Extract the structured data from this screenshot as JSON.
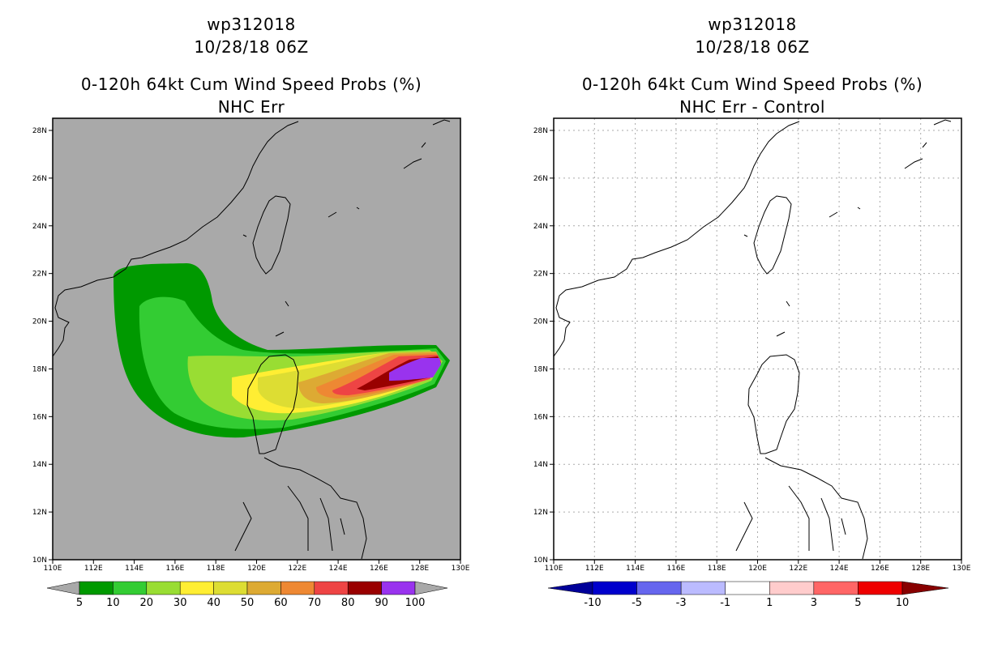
{
  "panels": [
    {
      "title_storm": "wp312018",
      "title_time": "10/28/18 06Z",
      "title_product": "0-120h 64kt Cum Wind Speed Probs (%)",
      "title_sub": "NHC Err",
      "background_color": "#a9a9a9",
      "colorbar": {
        "labels": [
          "5",
          "10",
          "20",
          "30",
          "40",
          "50",
          "60",
          "70",
          "80",
          "90",
          "100"
        ],
        "colors": [
          "#009900",
          "#33cc33",
          "#99dd33",
          "#ffee33",
          "#dddd33",
          "#ddaa33",
          "#ee8833",
          "#ee4444",
          "#990000",
          "#9933ee"
        ]
      }
    },
    {
      "title_storm": "wp312018",
      "title_time": "10/28/18 06Z",
      "title_product": "0-120h 64kt Cum Wind Speed Probs (%)",
      "title_sub": "NHC Err - Control",
      "background_color": "#ffffff",
      "colorbar": {
        "labels": [
          "-10",
          "-5",
          "-3",
          "-1",
          "1",
          "3",
          "5",
          "10"
        ],
        "colors": [
          "#0000cc",
          "#6666ee",
          "#bbbbff",
          "#ffffff",
          "#ffcccc",
          "#ff6666",
          "#ee0000"
        ],
        "low_arrow_color": "#000099",
        "high_arrow_color": "#880000"
      }
    }
  ],
  "axes": {
    "lon_labels": [
      "110E",
      "112E",
      "114E",
      "116E",
      "118E",
      "120E",
      "122E",
      "124E",
      "126E",
      "128E",
      "130E"
    ],
    "lat_labels": [
      "10N",
      "12N",
      "14N",
      "16N",
      "18N",
      "20N",
      "22N",
      "24N",
      "26N",
      "28N"
    ]
  }
}
